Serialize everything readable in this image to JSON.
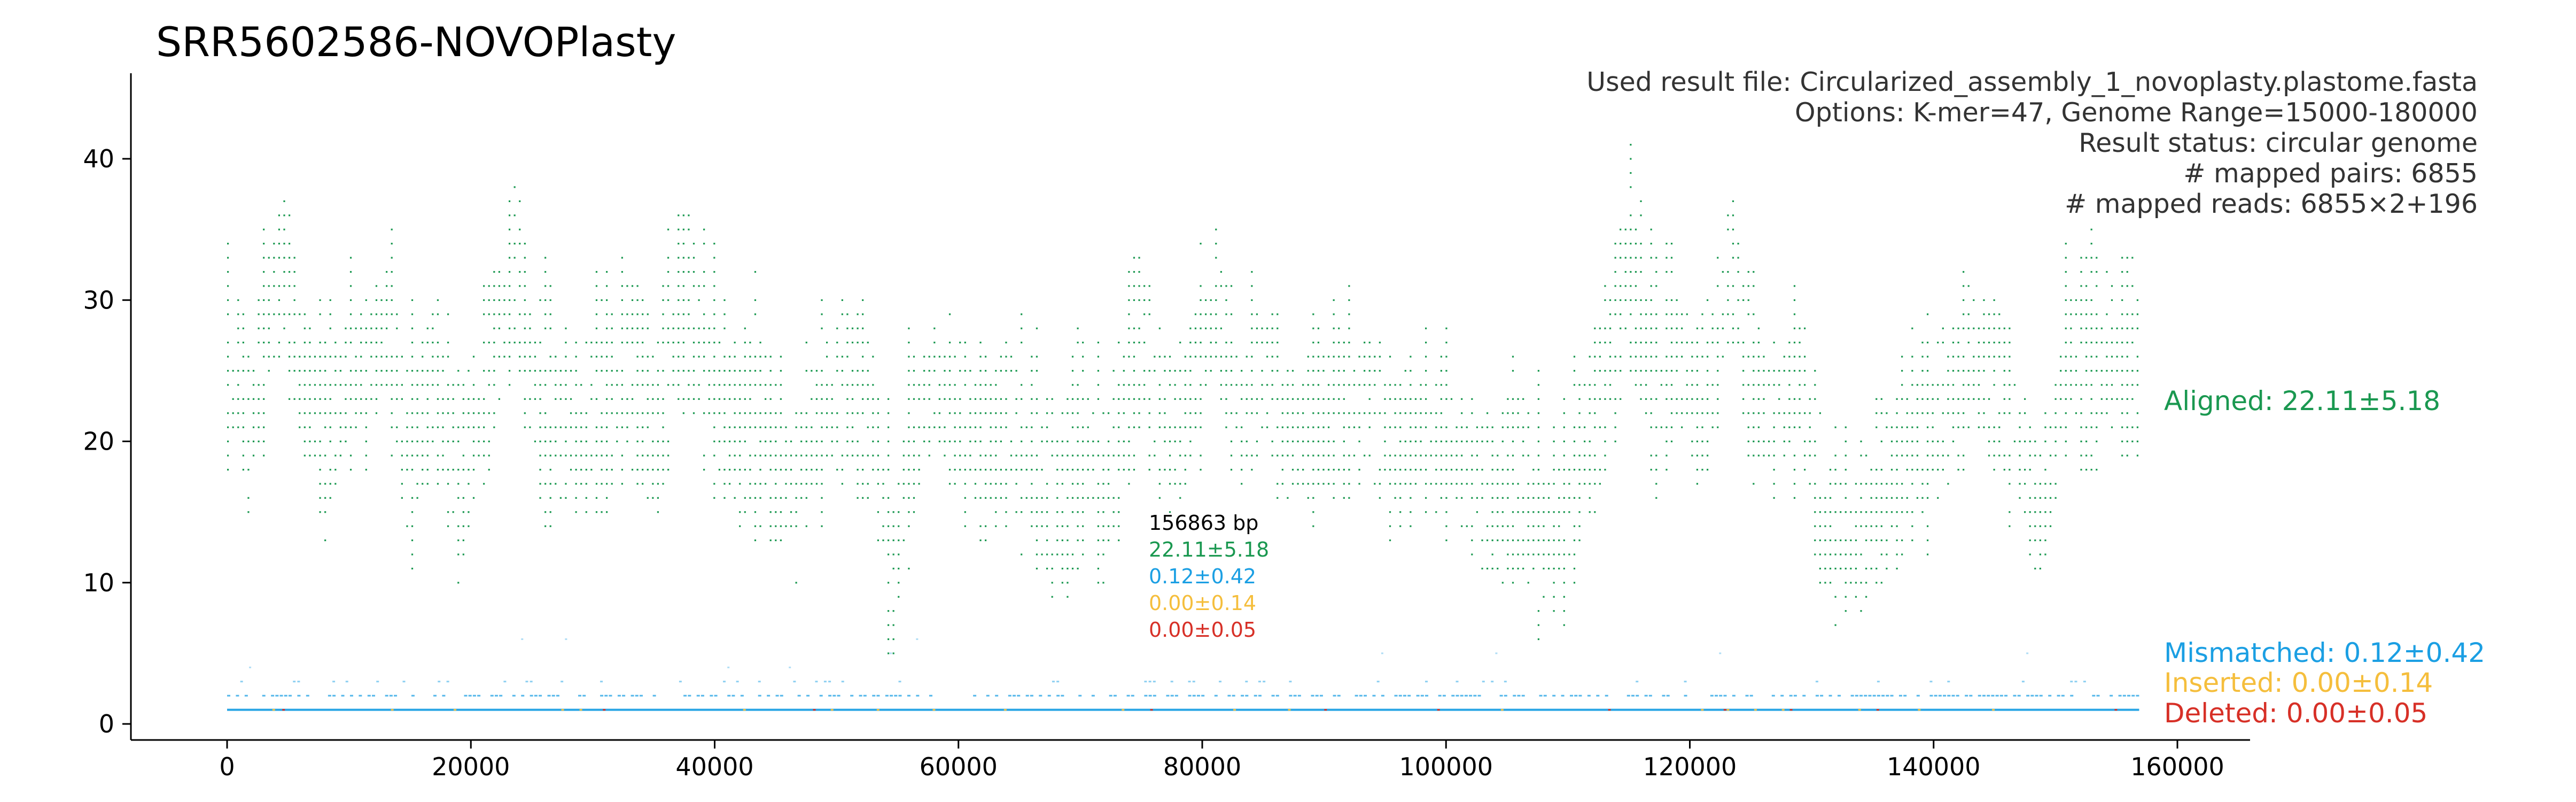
{
  "colors": {
    "aligned": "#1a9850",
    "mismatched": "#1b9fe3",
    "inserted": "#f5be3c",
    "deleted": "#d73027",
    "axis": "#000000",
    "info_text": "#333333",
    "length_text": "#000000"
  },
  "chart_data": {
    "type": "scatter",
    "title": "SRR5602586-NOVOPlasty",
    "xlabel": "",
    "ylabel": "",
    "xlim": [
      -10000,
      166000
    ],
    "ylim": [
      -1,
      46
    ],
    "x_ticks": [
      0,
      20000,
      40000,
      60000,
      80000,
      100000,
      120000,
      140000,
      160000
    ],
    "x_tick_labels": [
      "0",
      "20000",
      "40000",
      "60000",
      "80000",
      "100000",
      "120000",
      "140000",
      "160000"
    ],
    "y_ticks": [
      0,
      10,
      20,
      30,
      40
    ],
    "y_tick_labels": [
      "0",
      "10",
      "20",
      "30",
      "40"
    ],
    "grid": false,
    "genome_length_bp": 156863,
    "info_lines": [
      "Used result file: Circularized_assembly_1_novoplasty.plastome.fasta",
      "Options: K-mer=47, Genome Range=15000-180000",
      "Result status: circular genome",
      "# mapped pairs: 6855",
      "# mapped reads: 6855×2+196"
    ],
    "inner_stats": {
      "length": "156863 bp",
      "aligned": "22.11±5.18",
      "mismatched": "0.12±0.42",
      "inserted": "0.00±0.14",
      "deleted": "0.00±0.05"
    },
    "series": [
      {
        "name": "Aligned: 22.11±5.18",
        "key": "aligned",
        "mean": 22.11,
        "sd": 5.18,
        "profile": [
          [
            0,
            26
          ],
          [
            2000,
            22
          ],
          [
            4500,
            34
          ],
          [
            6000,
            24
          ],
          [
            8000,
            21
          ],
          [
            10000,
            24
          ],
          [
            13000,
            28
          ],
          [
            15000,
            19
          ],
          [
            17000,
            24
          ],
          [
            19000,
            17
          ],
          [
            21000,
            23
          ],
          [
            23500,
            33
          ],
          [
            25000,
            24
          ],
          [
            27000,
            21
          ],
          [
            30000,
            22
          ],
          [
            33000,
            24
          ],
          [
            35000,
            21
          ],
          [
            37000,
            30
          ],
          [
            40000,
            24
          ],
          [
            42000,
            20
          ],
          [
            44000,
            22
          ],
          [
            46000,
            17
          ],
          [
            48000,
            21
          ],
          [
            51000,
            25
          ],
          [
            53000,
            21
          ],
          [
            54500,
            11
          ],
          [
            56000,
            19
          ],
          [
            58000,
            24
          ],
          [
            60000,
            22
          ],
          [
            62000,
            19
          ],
          [
            64000,
            21
          ],
          [
            66000,
            19
          ],
          [
            68000,
            15
          ],
          [
            70000,
            19
          ],
          [
            72000,
            18
          ],
          [
            75000,
            27
          ],
          [
            77000,
            21
          ],
          [
            79000,
            23
          ],
          [
            81000,
            30
          ],
          [
            83000,
            23
          ],
          [
            85000,
            25
          ],
          [
            87000,
            20
          ],
          [
            90000,
            22
          ],
          [
            93000,
            23
          ],
          [
            96000,
            20
          ],
          [
            98000,
            21
          ],
          [
            100000,
            20
          ],
          [
            102000,
            17
          ],
          [
            104000,
            16
          ],
          [
            106000,
            18
          ],
          [
            108000,
            13
          ],
          [
            110000,
            15
          ],
          [
            112000,
            22
          ],
          [
            114000,
            28
          ],
          [
            115000,
            33
          ],
          [
            117000,
            24
          ],
          [
            119000,
            26
          ],
          [
            121000,
            23
          ],
          [
            123500,
            33
          ],
          [
            125000,
            24
          ],
          [
            127000,
            22
          ],
          [
            129000,
            24
          ],
          [
            131000,
            14
          ],
          [
            133000,
            14
          ],
          [
            135000,
            15
          ],
          [
            137000,
            18
          ],
          [
            139000,
            20
          ],
          [
            141000,
            22
          ],
          [
            143000,
            26
          ],
          [
            145000,
            24
          ],
          [
            147000,
            20
          ],
          [
            149000,
            15
          ],
          [
            151000,
            27
          ],
          [
            153000,
            25
          ],
          [
            155000,
            27
          ],
          [
            156863,
            26
          ]
        ]
      },
      {
        "name": "Mismatched: 0.12±0.42",
        "key": "mismatched",
        "mean": 0.12,
        "sd": 0.42
      },
      {
        "name": "Inserted: 0.00±0.14",
        "key": "inserted",
        "mean": 0.0,
        "sd": 0.14
      },
      {
        "name": "Deleted: 0.00±0.05",
        "key": "deleted",
        "mean": 0.0,
        "sd": 0.05
      }
    ]
  }
}
